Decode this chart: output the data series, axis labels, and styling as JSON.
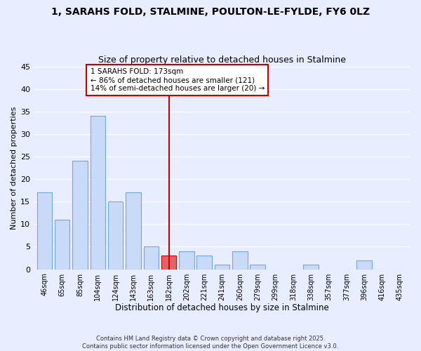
{
  "title": "1, SARAHS FOLD, STALMINE, POULTON-LE-FYLDE, FY6 0LZ",
  "subtitle": "Size of property relative to detached houses in Stalmine",
  "xlabel": "Distribution of detached houses by size in Stalmine",
  "ylabel": "Number of detached properties",
  "categories": [
    "46sqm",
    "65sqm",
    "85sqm",
    "104sqm",
    "124sqm",
    "143sqm",
    "163sqm",
    "182sqm",
    "202sqm",
    "221sqm",
    "241sqm",
    "260sqm",
    "279sqm",
    "299sqm",
    "318sqm",
    "338sqm",
    "357sqm",
    "377sqm",
    "396sqm",
    "416sqm",
    "435sqm"
  ],
  "values": [
    17,
    11,
    24,
    34,
    15,
    17,
    5,
    3,
    4,
    3,
    1,
    4,
    1,
    0,
    0,
    1,
    0,
    0,
    2,
    0,
    0
  ],
  "bar_color": "#c9daf8",
  "bar_edge_color": "#6fa8dc",
  "highlight_bar_index": 7,
  "highlight_bar_color": "#e06666",
  "highlight_bar_edge_color": "#cc0000",
  "vline_x_index": 7,
  "vline_color": "#cc0000",
  "annotation_title": "1 SARAHS FOLD: 173sqm",
  "annotation_line1": "← 86% of detached houses are smaller (121)",
  "annotation_line2": "14% of semi-detached houses are larger (20) →",
  "ylim": [
    0,
    45
  ],
  "yticks": [
    0,
    5,
    10,
    15,
    20,
    25,
    30,
    35,
    40,
    45
  ],
  "footer1": "Contains HM Land Registry data © Crown copyright and database right 2025.",
  "footer2": "Contains public sector information licensed under the Open Government Licence v3.0.",
  "bg_color": "#e8eeff",
  "grid_color": "#ffffff",
  "title_fontsize": 10,
  "subtitle_fontsize": 9
}
